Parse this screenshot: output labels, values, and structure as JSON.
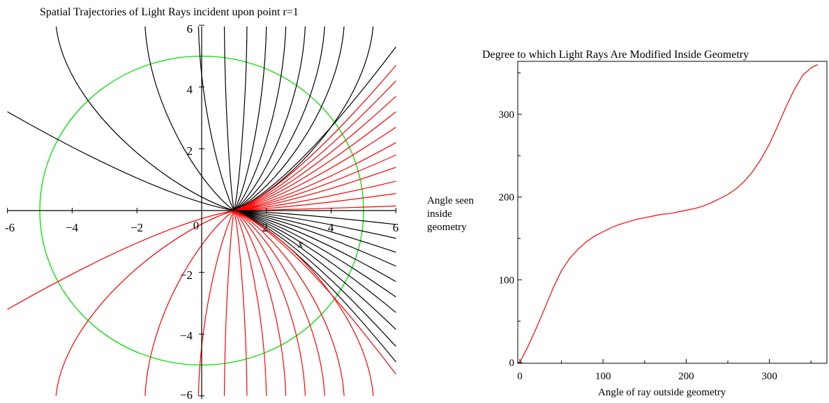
{
  "colors": {
    "black_rays": "#000000",
    "red_rays": "#ff0000",
    "circle": "#00e000",
    "curve": "#ff0000",
    "axes": "#000000"
  },
  "chart_data": [
    {
      "type": "line",
      "title": "Spatial Trajectories of Light Rays incident upon point r=1",
      "xlabel": "x",
      "ylabel": "",
      "xlim": [
        -6,
        6
      ],
      "ylim": [
        -6,
        6
      ],
      "x_ticks": [
        "-6",
        "−4",
        "−2",
        "0",
        "2",
        "4",
        "6"
      ],
      "y_ticks": [
        "6",
        "4",
        "2",
        "−2",
        "−4",
        "−6"
      ],
      "grid": false,
      "legend": "none",
      "focus_point": [
        1,
        0
      ],
      "circle": {
        "center": [
          0,
          0
        ],
        "radius": 5
      },
      "series": [
        {
          "color": "black",
          "rays": [
            {
              "far_end": [
                -6,
                3.2
              ],
              "bend": 0.9
            },
            {
              "far_end": [
                -4.5,
                6
              ],
              "bend": 1.6
            },
            {
              "far_end": [
                -1.75,
                6
              ],
              "bend": 1.9
            },
            {
              "far_end": [
                -0.1,
                6
              ],
              "bend": 2.1
            },
            {
              "far_end": [
                0.7,
                6
              ],
              "bend": 1.6
            },
            {
              "far_end": [
                1.4,
                6
              ],
              "bend": 1.6
            },
            {
              "far_end": [
                2.0,
                6
              ],
              "bend": 1.6
            },
            {
              "far_end": [
                2.6,
                6
              ],
              "bend": 1.6
            },
            {
              "far_end": [
                3.2,
                6
              ],
              "bend": 1.6
            },
            {
              "far_end": [
                3.8,
                6
              ],
              "bend": 1.6
            },
            {
              "far_end": [
                4.4,
                6
              ],
              "bend": 1.6
            },
            {
              "far_end": [
                5.3,
                6
              ],
              "bend": 1.6
            },
            {
              "far_end": [
                6,
                5.3
              ],
              "bend": 1.6
            },
            {
              "far_end": [
                6,
                -0.45
              ],
              "bend": 1.2
            },
            {
              "far_end": [
                6,
                -0.9
              ],
              "bend": 1.2
            },
            {
              "far_end": [
                6,
                -1.35
              ],
              "bend": 1.2
            },
            {
              "far_end": [
                6,
                -1.8
              ],
              "bend": 1.2
            },
            {
              "far_end": [
                6,
                -2.3
              ],
              "bend": 1.2
            },
            {
              "far_end": [
                6,
                -2.8
              ],
              "bend": 1.2
            },
            {
              "far_end": [
                6,
                -3.3
              ],
              "bend": 1.2
            },
            {
              "far_end": [
                6,
                -3.85
              ],
              "bend": 1.2
            },
            {
              "far_end": [
                6,
                -4.4
              ],
              "bend": 1.2
            },
            {
              "far_end": [
                6,
                -4.9
              ],
              "bend": 1.2
            }
          ]
        },
        {
          "color": "red",
          "rays": [
            {
              "far_end": [
                6,
                4.7
              ],
              "bend": 1.3
            },
            {
              "far_end": [
                6,
                4.2
              ],
              "bend": 1.3
            },
            {
              "far_end": [
                6,
                3.7
              ],
              "bend": 1.3
            },
            {
              "far_end": [
                6,
                3.2
              ],
              "bend": 1.3
            },
            {
              "far_end": [
                6,
                2.7
              ],
              "bend": 1.3
            },
            {
              "far_end": [
                6,
                2.2
              ],
              "bend": 1.3
            },
            {
              "far_end": [
                6,
                1.8
              ],
              "bend": 1.3
            },
            {
              "far_end": [
                6,
                1.4
              ],
              "bend": 1.3
            },
            {
              "far_end": [
                6,
                0.95
              ],
              "bend": 1.3
            },
            {
              "far_end": [
                6,
                0.55
              ],
              "bend": 1.3
            },
            {
              "far_end": [
                6,
                0.15
              ],
              "bend": 1.3
            },
            {
              "far_end": [
                -6,
                -3.2
              ],
              "bend": 0.9
            },
            {
              "far_end": [
                -4.5,
                -6
              ],
              "bend": 1.6
            },
            {
              "far_end": [
                -1.75,
                -6
              ],
              "bend": 1.9
            },
            {
              "far_end": [
                -0.1,
                -6
              ],
              "bend": 2.1
            },
            {
              "far_end": [
                0.7,
                -6
              ],
              "bend": 1.6
            },
            {
              "far_end": [
                1.4,
                -6
              ],
              "bend": 1.6
            },
            {
              "far_end": [
                2.0,
                -6
              ],
              "bend": 1.6
            },
            {
              "far_end": [
                2.6,
                -6
              ],
              "bend": 1.6
            },
            {
              "far_end": [
                3.2,
                -6
              ],
              "bend": 1.6
            },
            {
              "far_end": [
                3.8,
                -6
              ],
              "bend": 1.6
            },
            {
              "far_end": [
                4.4,
                -6
              ],
              "bend": 1.6
            },
            {
              "far_end": [
                5.3,
                -6
              ],
              "bend": 1.6
            },
            {
              "far_end": [
                6,
                -5.3
              ],
              "bend": 1.6
            }
          ]
        }
      ]
    },
    {
      "type": "line",
      "title": "Degree to which Light Rays Are Modified Inside Geometry",
      "xlabel": "Angle of ray outside  geometry",
      "ylabel_lines": [
        "Angle seen",
        "inside",
        "geometry"
      ],
      "xlim": [
        0,
        360
      ],
      "ylim": [
        0,
        360
      ],
      "x_ticks": [
        0,
        100,
        200,
        300
      ],
      "y_ticks": [
        0,
        100,
        200,
        300
      ],
      "grid": false,
      "legend": "none",
      "series": [
        {
          "color": "red",
          "x": [
            0,
            10,
            20,
            30,
            40,
            50,
            60,
            70,
            80,
            90,
            100,
            110,
            120,
            130,
            140,
            150,
            160,
            170,
            180,
            190,
            200,
            210,
            220,
            230,
            240,
            250,
            260,
            270,
            280,
            290,
            300,
            310,
            320,
            330,
            340,
            350,
            358
          ],
          "y": [
            0,
            20,
            42,
            66,
            90,
            111,
            126,
            137,
            146,
            153,
            158,
            163,
            167,
            170,
            173,
            175,
            177,
            179,
            180,
            182,
            184,
            186,
            189,
            193,
            198,
            203,
            210,
            219,
            231,
            246,
            264,
            286,
            309,
            330,
            347,
            356,
            360
          ]
        }
      ]
    }
  ]
}
